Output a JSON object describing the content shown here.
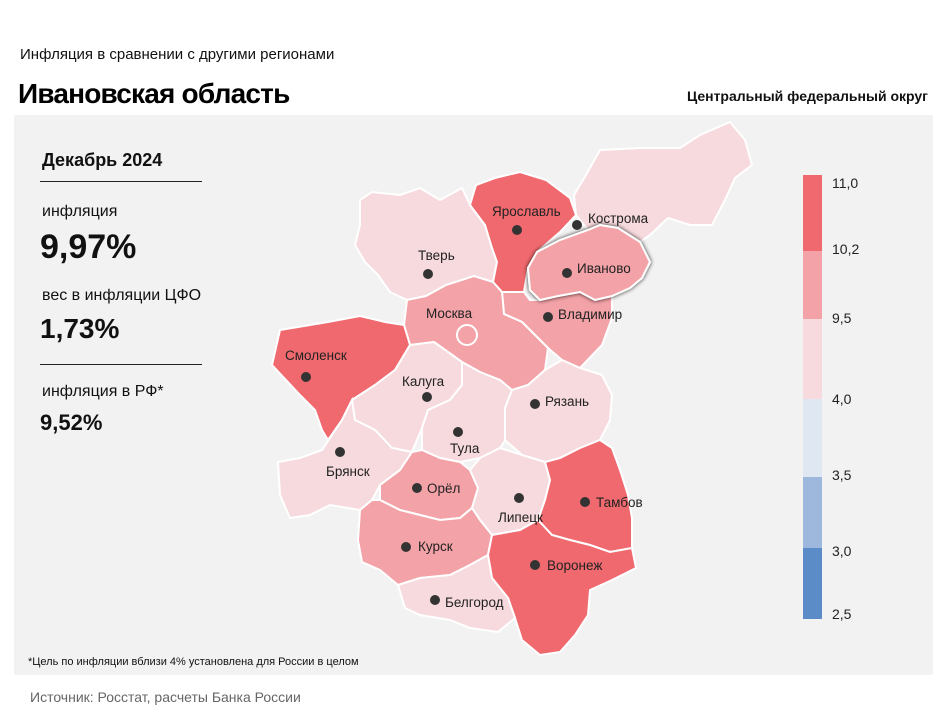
{
  "header": {
    "subtitle": "Инфляция  в сравнении  с другими  регионами",
    "title": "Ивановская область",
    "district": "Центральный федеральный округ"
  },
  "stats": {
    "period": "Декабрь 2024",
    "inflation_label": "инфляция",
    "inflation_value": "9,97%",
    "weight_label": "вес в инфляции  ЦФО",
    "weight_value": "1,73%",
    "rf_label": "инфляция  в РФ*",
    "rf_value": "9,52%"
  },
  "map": {
    "highlighted_region": "Иваново",
    "regions": [
      {
        "id": "kostroma",
        "name": "Кострома",
        "color": "#f7dadd"
      },
      {
        "id": "tver",
        "name": "Тверь",
        "color": "#f7dadd"
      },
      {
        "id": "yaroslavl",
        "name": "Ярославль",
        "color": "#f0696e"
      },
      {
        "id": "ivanovo",
        "name": "Иваново",
        "color": "#f3a2a7"
      },
      {
        "id": "vladimir",
        "name": "Владимир",
        "color": "#f3a2a7"
      },
      {
        "id": "moscow",
        "name": "Москва",
        "color": "#f3a2a7"
      },
      {
        "id": "smolensk",
        "name": "Смоленск",
        "color": "#f0696e"
      },
      {
        "id": "kaluga",
        "name": "Калуга",
        "color": "#f7dadd"
      },
      {
        "id": "ryazan",
        "name": "Рязань",
        "color": "#f7dadd"
      },
      {
        "id": "tula",
        "name": "Тула",
        "color": "#f7dadd"
      },
      {
        "id": "bryansk",
        "name": "Брянск",
        "color": "#f7dadd"
      },
      {
        "id": "orel",
        "name": "Орёл",
        "color": "#f3a2a7"
      },
      {
        "id": "lipetsk",
        "name": "Липецк",
        "color": "#f7dadd"
      },
      {
        "id": "tambov",
        "name": "Тамбов",
        "color": "#f0696e"
      },
      {
        "id": "kursk",
        "name": "Курск",
        "color": "#f3a2a7"
      },
      {
        "id": "voronezh",
        "name": "Воронеж",
        "color": "#f0696e"
      },
      {
        "id": "belgorod",
        "name": "Белгород",
        "color": "#f7dadd"
      }
    ]
  },
  "legend": {
    "bins": [
      {
        "color": "#f0696e"
      },
      {
        "color": "#f3a2a7"
      },
      {
        "color": "#f7dadd"
      },
      {
        "color": "#dfe7f3"
      },
      {
        "color": "#9db8dc"
      },
      {
        "color": "#5b8cc8"
      }
    ],
    "values": [
      "11,0",
      "10,2",
      "9,5",
      "4,0",
      "3,5",
      "3,0",
      "2,5"
    ]
  },
  "footnote": "*Цель по инфляции вблизи 4% установлена для России в целом",
  "source": "Источник: Росстат, расчеты Банка России"
}
